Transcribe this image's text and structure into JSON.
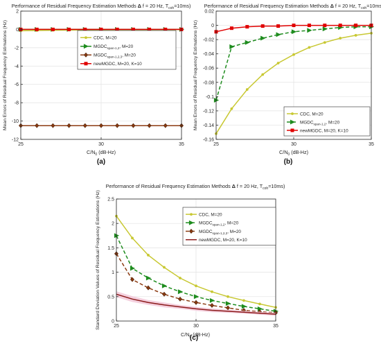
{
  "colors": {
    "cdc": "#c8c832",
    "mgdc12": "#1e8c1e",
    "mgdc123": "#8b3a10",
    "newmgdc_a": "#e00000",
    "newmgdc_c": "#8b1a1a",
    "newmgdc_shade": "#f2c8d8"
  },
  "chart_data": [
    {
      "type": "line",
      "panel_label": "(a)",
      "title_main": "Performance of Residual Frequency Estimation Methods ",
      "title_delta": "Δ",
      "title_rest": " f = 20 Hz, T",
      "title_sub": "coh",
      "title_end": "=10ms)",
      "xlabel_main": "C/N",
      "xlabel_sub": "0",
      "xlabel_end": " (dB-Hz)",
      "ylabel": "Mean Errors of Residual Frequency Estimations (Hz)",
      "xlim": [
        25,
        35
      ],
      "ylim": [
        -12,
        2
      ],
      "xticks": [
        25,
        30,
        35
      ],
      "yticks": [
        -12,
        -10,
        -8,
        -6,
        -4,
        -2,
        0,
        2
      ],
      "grid": true,
      "legend_position": "top-center",
      "x": [
        25,
        26,
        27,
        28,
        29,
        30,
        31,
        32,
        33,
        34,
        35
      ],
      "series": [
        {
          "key": "cdc",
          "label_main": "CDC, M=20",
          "label_sub": "",
          "label_end": "",
          "values": [
            -0.15,
            -0.12,
            -0.09,
            -0.07,
            -0.05,
            -0.04,
            -0.03,
            -0.02,
            -0.02,
            -0.01,
            -0.01
          ],
          "marker": "circle",
          "dash": ""
        },
        {
          "key": "mgdc12",
          "label_main": "MGDC",
          "label_sub": "span-1,2",
          "label_end": ", M=20",
          "values": [
            0,
            0,
            0,
            0,
            0,
            0,
            0,
            0,
            0,
            0,
            0
          ],
          "marker": "triangle",
          "dash": ""
        },
        {
          "key": "mgdc123",
          "label_main": "MGDC",
          "label_sub": "span-1,2,3",
          "label_end": ", M=20",
          "values": [
            -10.5,
            -10.5,
            -10.5,
            -10.5,
            -10.5,
            -10.5,
            -10.5,
            -10.5,
            -10.5,
            -10.5,
            -10.5
          ],
          "marker": "diamond",
          "dash": ""
        },
        {
          "key": "newmgdc_a",
          "label_main": "newMGDC, M=20, K=10",
          "label_sub": "",
          "label_end": "",
          "values": [
            0,
            0,
            0,
            0,
            0,
            0,
            0,
            0,
            0,
            0,
            0
          ],
          "marker": "square",
          "dash": ""
        }
      ]
    },
    {
      "type": "line",
      "panel_label": "(b)",
      "title_main": "Performance of Residual Frequency Estimation Methods ",
      "title_delta": "Δ",
      "title_rest": " f = 20 Hz, T",
      "title_sub": "coh",
      "title_end": "=10ms)",
      "xlabel_main": "C/N",
      "xlabel_sub": "0",
      "xlabel_end": " (dB-Hz)",
      "ylabel": "Mean Errors of Residual Frequency Estimations (Hz)",
      "xlim": [
        25,
        35
      ],
      "ylim": [
        -0.16,
        0.02
      ],
      "xticks": [
        25,
        30,
        35
      ],
      "yticks": [
        -0.16,
        -0.14,
        -0.12,
        -0.1,
        -0.08,
        -0.06,
        -0.04,
        -0.02,
        0,
        0.02
      ],
      "grid": true,
      "legend_position": "bottom-right",
      "x": [
        25,
        26,
        27,
        28,
        29,
        30,
        31,
        32,
        33,
        34,
        35
      ],
      "series": [
        {
          "key": "cdc",
          "label_main": "CDC, M=20",
          "label_sub": "",
          "label_end": "",
          "values": [
            -0.152,
            -0.117,
            -0.09,
            -0.069,
            -0.053,
            -0.041,
            -0.031,
            -0.024,
            -0.018,
            -0.014,
            -0.011
          ],
          "marker": "circle",
          "dash": ""
        },
        {
          "key": "mgdc12",
          "label_main": "MGDC",
          "label_sub": "span-1,2",
          "label_end": ", M=20",
          "values": [
            -0.105,
            -0.03,
            -0.024,
            -0.018,
            -0.013,
            -0.009,
            -0.007,
            -0.005,
            -0.003,
            -0.002,
            -0.002
          ],
          "marker": "triangle",
          "dash": "5,3"
        },
        {
          "key": "newmgdc_a",
          "label_main": "newMGDC, M=20, K=10",
          "label_sub": "",
          "label_end": "",
          "values": [
            -0.009,
            -0.004,
            -0.002,
            -0.001,
            -0.001,
            0,
            0,
            0,
            0,
            0,
            0
          ],
          "marker": "square",
          "dash": ""
        }
      ]
    },
    {
      "type": "line",
      "panel_label": "(c)",
      "title_main": "Performance of Residual Frequency Estimation Methods ",
      "title_delta": "Δ",
      "title_rest": " f = 20 Hz, T",
      "title_sub": "coh",
      "title_end": "=10ms)",
      "xlabel_main": "C/N",
      "xlabel_sub": "0",
      "xlabel_end": " (dB-Hz)",
      "ylabel": "Standard Deviation Values of Residual Frequency Estimations (Hz)",
      "xlim": [
        25,
        35
      ],
      "ylim": [
        0,
        2.5
      ],
      "xticks": [
        25,
        30,
        35
      ],
      "yticks": [
        0,
        0.5,
        1,
        1.5,
        2,
        2.5
      ],
      "grid": true,
      "legend_position": "top-right",
      "x": [
        25,
        26,
        27,
        28,
        29,
        30,
        31,
        32,
        33,
        34,
        35
      ],
      "series": [
        {
          "key": "cdc",
          "label_main": "CDC, M=20",
          "label_sub": "",
          "label_end": "",
          "values": [
            2.15,
            1.7,
            1.35,
            1.1,
            0.88,
            0.72,
            0.6,
            0.5,
            0.42,
            0.35,
            0.28
          ],
          "marker": "circle",
          "dash": ""
        },
        {
          "key": "mgdc12",
          "label_main": "MGDC",
          "label_sub": "span-1,2",
          "label_end": ", M=20",
          "values": [
            1.75,
            1.08,
            0.88,
            0.72,
            0.6,
            0.5,
            0.42,
            0.36,
            0.3,
            0.25,
            0.2
          ],
          "marker": "triangle",
          "dash": "5,3"
        },
        {
          "key": "mgdc123",
          "label_main": "MGDC",
          "label_sub": "span-1,2,3",
          "label_end": ", M=20",
          "values": [
            1.38,
            0.85,
            0.68,
            0.55,
            0.45,
            0.38,
            0.32,
            0.27,
            0.22,
            0.19,
            0.17
          ],
          "marker": "diamond",
          "dash": "5,3"
        },
        {
          "key": "newmgdc_c",
          "label_main": "newMGDC, M=20, K=10",
          "label_sub": "",
          "label_end": "",
          "values": [
            0.55,
            0.45,
            0.38,
            0.33,
            0.29,
            0.25,
            0.22,
            0.2,
            0.18,
            0.16,
            0.14
          ],
          "marker": "none",
          "dash": "",
          "band": [
            0.06,
            0.06,
            0.05,
            0.05,
            0.04,
            0.04,
            0.04,
            0.03,
            0.03,
            0.03,
            0.03
          ]
        }
      ]
    }
  ]
}
